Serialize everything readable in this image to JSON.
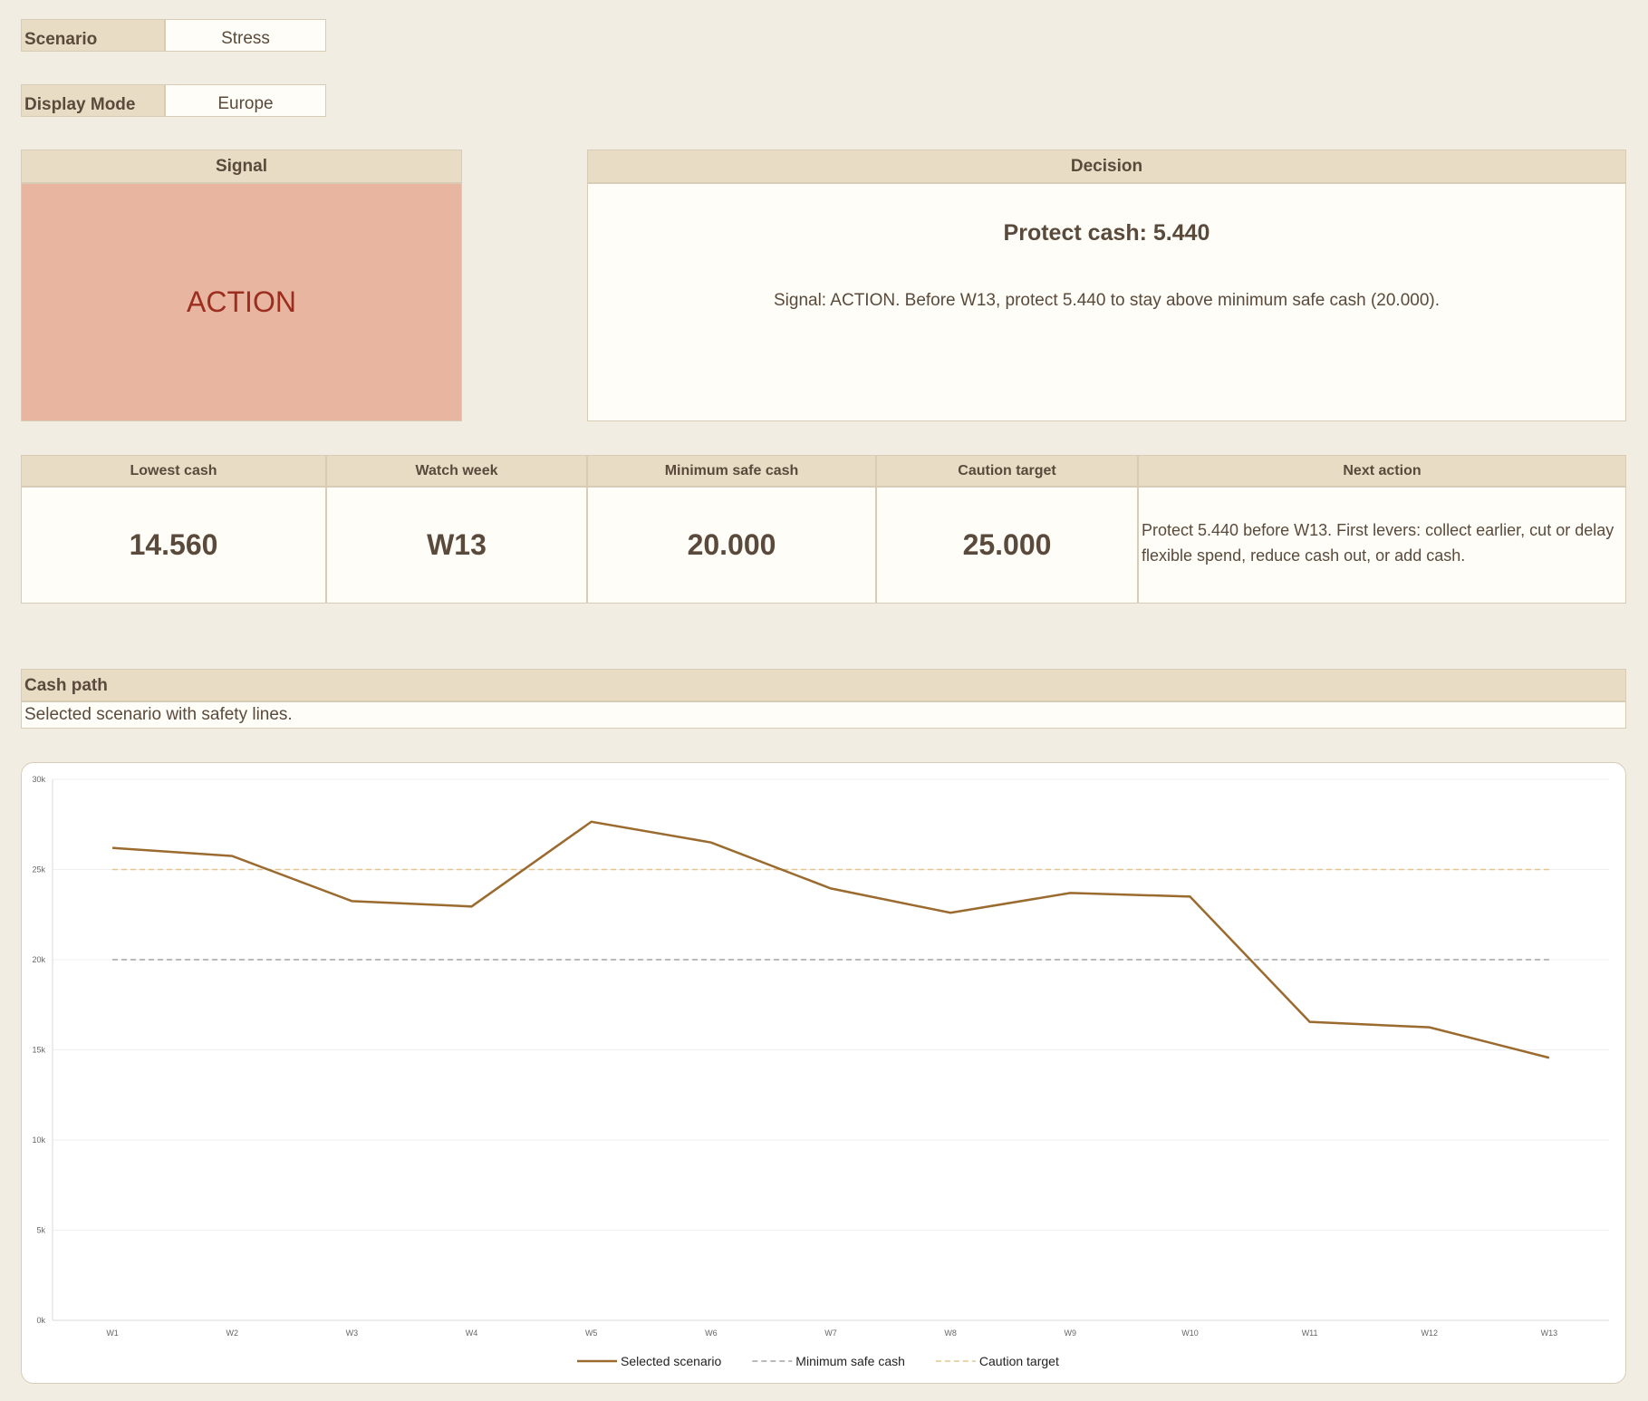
{
  "controls": [
    {
      "label": "Scenario",
      "value": "Stress"
    },
    {
      "label": "Display Mode",
      "value": "Europe"
    }
  ],
  "signal": {
    "header": "Signal",
    "value": "ACTION"
  },
  "decision": {
    "header": "Decision",
    "headline": "Protect cash: 5.440",
    "text": "Signal: ACTION. Before W13, protect 5.440 to stay above minimum safe cash (20.000)."
  },
  "metrics": {
    "headers": [
      "Lowest cash",
      "Watch week",
      "Minimum safe cash",
      "Caution target",
      "Next action"
    ],
    "values": [
      "14.560",
      "W13",
      "20.000",
      "25.000",
      "Protect 5.440 before W13. First levers: collect earlier, cut or delay flexible spend, reduce cash out, or add cash."
    ]
  },
  "cash_path": {
    "title": "Cash path",
    "subtitle": "Selected scenario with safety lines."
  },
  "chart_data": {
    "type": "line",
    "categories": [
      "W1",
      "W2",
      "W3",
      "W4",
      "W5",
      "W6",
      "W7",
      "W8",
      "W9",
      "W10",
      "W11",
      "W12",
      "W13"
    ],
    "series": [
      {
        "name": "Selected scenario",
        "color": "#9b6a2f",
        "dash": "solid",
        "values": [
          26200,
          25750,
          23250,
          22950,
          27650,
          26500,
          23950,
          22600,
          23700,
          23500,
          16550,
          16250,
          14560
        ]
      },
      {
        "name": "Minimum safe cash",
        "color": "#a3a3a3",
        "dash": "dashed",
        "values": [
          20000,
          20000,
          20000,
          20000,
          20000,
          20000,
          20000,
          20000,
          20000,
          20000,
          20000,
          20000,
          20000
        ]
      },
      {
        "name": "Caution target",
        "color": "#e3c58f",
        "dash": "dashed",
        "values": [
          25000,
          25000,
          25000,
          25000,
          25000,
          25000,
          25000,
          25000,
          25000,
          25000,
          25000,
          25000,
          25000
        ]
      }
    ],
    "ylim": [
      0,
      30000
    ],
    "yticks": [
      {
        "value": 0,
        "label": "0k"
      },
      {
        "value": 5000,
        "label": "5k"
      },
      {
        "value": 10000,
        "label": "10k"
      },
      {
        "value": 15000,
        "label": "15k"
      },
      {
        "value": 20000,
        "label": "20k"
      },
      {
        "value": 25000,
        "label": "25k"
      },
      {
        "value": 30000,
        "label": "30k"
      }
    ],
    "grid": true,
    "legend": "bottom"
  }
}
